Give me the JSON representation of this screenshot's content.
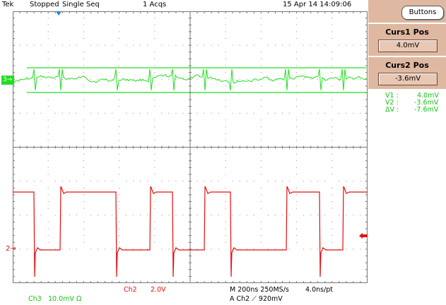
{
  "header": {
    "brand": "Tek",
    "status": "Stopped",
    "mode": "Single Seq",
    "acqs": "1 Acqs",
    "datetime": "15 Apr 14 14:09:06"
  },
  "side_panel": {
    "buttons_label": "Buttons",
    "curs1": {
      "label": "Curs1 Pos",
      "value": "4.0mV"
    },
    "curs2": {
      "label": "Curs2 Pos",
      "value": "-3.6mV"
    },
    "readouts": [
      {
        "name": "V1 :",
        "value": "4.0mV"
      },
      {
        "name": "V2 :",
        "value": "-3.6mV"
      },
      {
        "name": "ΔV :",
        "value": "-7.6mV"
      }
    ]
  },
  "channels": {
    "ch3_marker": "3",
    "ch2_marker": "2",
    "ch3_label": "Ch3",
    "ch3_scale": "10.0mV",
    "ch3_coupling": "Ω",
    "ch2_label": "Ch2",
    "ch2_scale": "2.0V"
  },
  "timebase": {
    "line1": "M 200ns 250MS/s",
    "resolution": "4.0ns/pt",
    "trigger": "A  Ch2  ⟋  920mV"
  },
  "colors": {
    "ch3": "#22dd22",
    "ch2": "#e01010",
    "grid": "#8a8a8a",
    "panel": "#deb8a0"
  }
}
